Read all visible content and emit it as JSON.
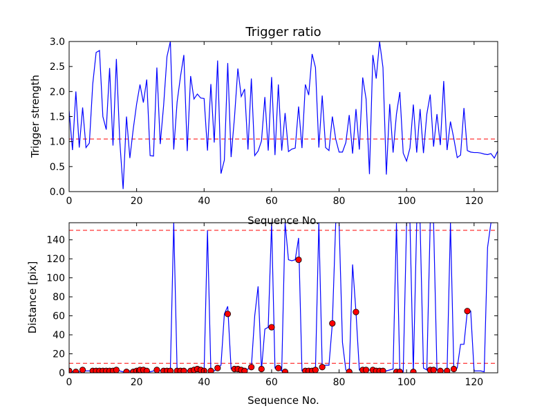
{
  "chart_data": [
    {
      "type": "line",
      "title": "Trigger ratio",
      "xlabel": "Sequence No.",
      "ylabel": "Trigger strength",
      "xlim": [
        0,
        127
      ],
      "ylim": [
        0,
        3.0
      ],
      "xticks": [
        "0",
        "20",
        "40",
        "60",
        "80",
        "100",
        "120"
      ],
      "yticks": [
        "0.0",
        "0.5",
        "1.0",
        "1.5",
        "2.0",
        "2.5",
        "3.0"
      ],
      "grid": false,
      "threshold": 1.05,
      "series": [
        {
          "color": "#0000ff",
          "values": [
            1.62,
            0.83,
            2.0,
            0.88,
            1.68,
            0.88,
            0.97,
            2.15,
            2.78,
            2.82,
            1.5,
            1.24,
            2.47,
            0.92,
            2.65,
            1.02,
            0.05,
            1.5,
            0.67,
            1.25,
            1.75,
            2.14,
            1.78,
            2.24,
            0.72,
            0.71,
            2.48,
            0.95,
            1.72,
            2.7,
            3.0,
            0.84,
            1.79,
            2.3,
            2.73,
            0.81,
            2.31,
            1.85,
            1.95,
            1.87,
            1.86,
            0.82,
            2.15,
            0.98,
            2.62,
            0.36,
            0.63,
            2.57,
            0.69,
            1.48,
            2.46,
            1.9,
            2.05,
            0.84,
            2.26,
            0.72,
            0.81,
            1.01,
            1.89,
            0.82,
            2.29,
            0.73,
            2.14,
            0.82,
            1.57,
            0.8,
            0.85,
            0.87,
            1.7,
            0.87,
            2.14,
            1.93,
            2.75,
            2.48,
            0.88,
            1.92,
            0.88,
            0.82,
            1.5,
            1.05,
            0.79,
            0.79,
            0.98,
            1.53,
            0.76,
            1.65,
            0.84,
            2.28,
            1.85,
            0.35,
            2.73,
            2.26,
            3.0,
            2.48,
            0.34,
            1.75,
            0.78,
            1.55,
            1.99,
            0.77,
            0.61,
            0.87,
            1.74,
            0.78,
            1.65,
            0.77,
            1.55,
            1.94,
            0.9,
            1.55,
            0.93,
            2.21,
            0.83,
            1.4,
            1.06,
            0.68,
            0.73,
            1.67,
            0.82,
            0.79,
            0.78,
            0.78,
            0.77,
            0.75,
            0.74,
            0.76,
            0.67,
            0.81
          ]
        }
      ]
    },
    {
      "type": "line",
      "title": "",
      "xlabel": "Sequence No.",
      "ylabel": "Distance [pix]",
      "xlim": [
        0,
        127
      ],
      "ylim": [
        0,
        158
      ],
      "xticks": [
        "0",
        "20",
        "40",
        "60",
        "80",
        "100",
        "120"
      ],
      "yticks": [
        "0",
        "20",
        "40",
        "60",
        "80",
        "100",
        "120",
        "140"
      ],
      "grid": false,
      "thresholds": [
        150,
        10
      ],
      "series": [
        {
          "color": "#0000ff",
          "values": [
            2,
            1,
            2,
            1,
            3,
            2,
            2,
            2,
            3,
            3,
            2,
            2,
            2,
            3,
            3,
            2,
            1,
            1,
            2,
            2,
            2,
            3,
            3,
            2,
            1,
            2,
            3,
            2,
            2,
            2,
            3,
            158,
            2,
            2,
            2,
            2,
            3,
            3,
            4,
            4,
            2,
            150,
            2,
            2,
            5,
            8,
            62,
            70,
            4,
            4,
            3,
            2,
            2,
            4,
            6,
            60,
            91,
            3,
            46,
            48,
            158,
            5,
            4,
            2,
            158,
            119,
            118,
            119,
            142,
            2,
            2,
            2,
            3,
            4,
            158,
            6,
            8,
            8,
            52,
            158,
            158,
            32,
            3,
            1,
            114,
            64,
            3,
            3,
            4,
            3,
            2,
            2,
            2,
            1,
            2,
            3,
            4,
            158,
            1,
            1,
            158,
            158,
            1,
            158,
            158,
            5,
            3,
            158,
            158,
            3,
            2,
            2,
            2,
            158,
            4,
            5,
            30,
            30,
            65,
            65,
            2,
            2,
            2,
            1,
            132,
            158,
            158
          ]
        }
      ],
      "markers": {
        "color": "#ff0000",
        "x": [
          0,
          2,
          4,
          7,
          8,
          9,
          10,
          11,
          12,
          13,
          14,
          17,
          19,
          20,
          21,
          22,
          23,
          26,
          28,
          29,
          30,
          32,
          33,
          34,
          36,
          37,
          38,
          39,
          40,
          42,
          44,
          47,
          49,
          50,
          51,
          52,
          54,
          57,
          60,
          62,
          64,
          68,
          70,
          71,
          72,
          73,
          75,
          78,
          83,
          85,
          87,
          88,
          90,
          91,
          92,
          93,
          97,
          98,
          102,
          107,
          108,
          110,
          112,
          114,
          118
        ],
        "y": [
          2,
          1,
          3,
          2,
          2,
          2,
          2,
          2,
          2,
          2,
          3,
          1,
          1,
          2,
          3,
          3,
          2,
          3,
          2,
          2,
          2,
          2,
          2,
          2,
          2,
          3,
          4,
          3,
          2,
          2,
          5,
          62,
          4,
          4,
          3,
          2,
          6,
          4,
          48,
          5,
          1,
          119,
          2,
          2,
          2,
          3,
          6,
          52,
          1,
          64,
          3,
          3,
          3,
          2,
          2,
          2,
          1,
          1,
          1,
          3,
          3,
          2,
          2,
          4,
          65
        ]
      }
    }
  ]
}
